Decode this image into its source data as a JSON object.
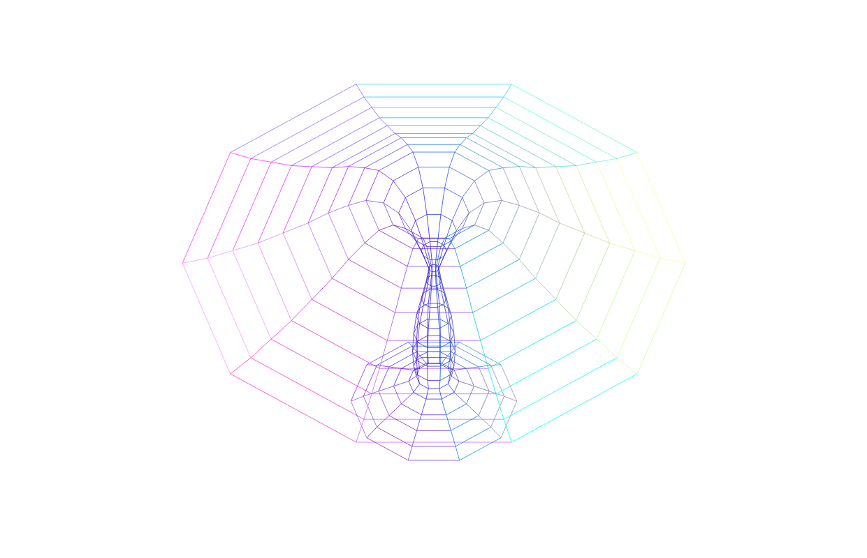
{
  "chart_data": {
    "type": "wireframe",
    "tick_labels": false,
    "grid": false,
    "theta": [
      0,
      36,
      72,
      108,
      144,
      180,
      216,
      252,
      288,
      324
    ],
    "rho": [
      1.0,
      0.9,
      0.8,
      0.7,
      0.6,
      0.5,
      0.42,
      0.34,
      0.27,
      0.2,
      0.14,
      0.09,
      0.05,
      0.02,
      0.03,
      0.05,
      0.07,
      0.08,
      0.085,
      0.08,
      0.07,
      0.1,
      0.16,
      0.22,
      0.28,
      0.33
    ],
    "height": [
      0.02,
      0.04,
      0.07,
      0.1,
      0.14,
      0.18,
      0.22,
      0.25,
      0.27,
      0.26,
      0.22,
      0.15,
      0.07,
      0.0,
      -0.05,
      -0.12,
      -0.19,
      -0.26,
      -0.33,
      -0.39,
      -0.43,
      -0.45,
      -0.47,
      -0.49,
      -0.51,
      -0.53
    ],
    "colors": [
      "#ffff99",
      "#66ffcc",
      "#33ccff",
      "#9966ff",
      "#ff33ff",
      "#ff99ff",
      "#ff33cc",
      "#cc66ff",
      "#00ffff",
      "#ccff99"
    ]
  }
}
